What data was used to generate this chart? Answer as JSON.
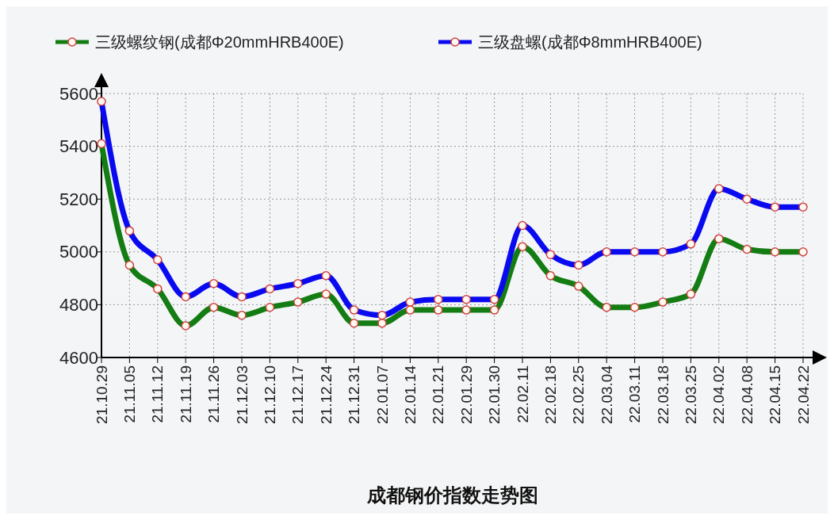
{
  "chart_data": {
    "type": "line",
    "title": "成都钢价指数走势图",
    "categories": [
      "21.10.29",
      "21.11.05",
      "21.11.12",
      "21.11.19",
      "21.11.26",
      "21.12.03",
      "21.12.10",
      "21.12.17",
      "21.12.24",
      "21.12.31",
      "22.01.07",
      "22.01.14",
      "22.01.21",
      "22.01.29",
      "22.01.30",
      "22.02.11",
      "22.02.18",
      "22.02.25",
      "22.03.04",
      "22.03.11",
      "22.03.18",
      "22.03.25",
      "22.04.02",
      "22.04.08",
      "22.04.15",
      "22.04.22"
    ],
    "series": [
      {
        "name": "三级螺纹钢(成都Φ20mmHRB400E)",
        "color": "#137d13",
        "values": [
          5410,
          4950,
          4860,
          4720,
          4790,
          4760,
          4790,
          4810,
          4840,
          4730,
          4730,
          4780,
          4780,
          4780,
          4780,
          5020,
          4910,
          4870,
          4790,
          4790,
          4810,
          4840,
          5050,
          5010,
          5000,
          5000
        ]
      },
      {
        "name": "三级盘螺(成都Φ8mmHRB400E)",
        "color": "#0a0af0",
        "values": [
          5570,
          5080,
          4970,
          4830,
          4880,
          4830,
          4860,
          4880,
          4910,
          4780,
          4760,
          4810,
          4820,
          4820,
          4820,
          5100,
          4990,
          4950,
          5000,
          5000,
          5000,
          5030,
          5240,
          5200,
          5170,
          5170
        ]
      }
    ],
    "ylim": [
      4600,
      5600
    ],
    "yticks": [
      4600,
      4800,
      5000,
      5200,
      5400,
      5600
    ],
    "grid": true,
    "legend": "top",
    "marker": "circle",
    "line_style": "solid"
  }
}
